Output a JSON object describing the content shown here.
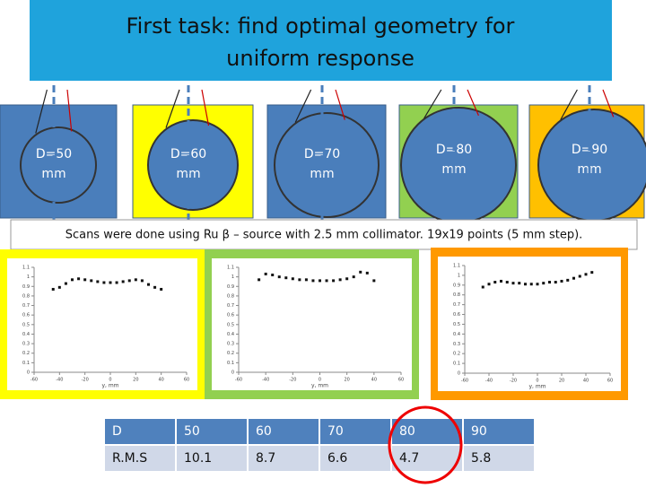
{
  "title": "First task: find optimal geometry for uniform response",
  "panels": [
    "D=50 mm",
    "D=60 mm",
    "D=70 mm",
    "D=80 mm",
    "D=90 mm"
  ],
  "caption": "Scans were done using Ru β – source with 2.5 mm collimator. 19x19 points (5 mm step).",
  "plots": [
    {
      "type": "scatter",
      "xlabel": "y, mm",
      "xlim": [
        -60,
        60
      ],
      "xticks": [
        -60,
        -40,
        -20,
        0,
        20,
        40,
        60
      ],
      "ylim": [
        0,
        1.1
      ],
      "yticks": [
        0,
        0.1,
        0.2,
        0.3,
        0.4,
        0.5,
        0.6,
        0.7,
        0.8,
        0.9,
        1,
        1.1
      ],
      "x": [
        -45,
        -40,
        -35,
        -30,
        -25,
        -20,
        -15,
        -10,
        -5,
        0,
        5,
        10,
        15,
        20,
        25,
        30,
        35,
        40,
        45
      ],
      "values": [
        0.87,
        0.89,
        0.93,
        0.97,
        0.98,
        0.97,
        0.96,
        0.95,
        0.94,
        0.94,
        0.94,
        0.95,
        0.96,
        0.97,
        0.96,
        0.92,
        0.89,
        0.87,
        null
      ]
    },
    {
      "type": "scatter",
      "xlabel": "y, mm",
      "xlim": [
        -60,
        60
      ],
      "xticks": [
        -60,
        -40,
        -20,
        0,
        20,
        40,
        60
      ],
      "ylim": [
        0,
        1.1
      ],
      "yticks": [
        0,
        0.1,
        0.2,
        0.3,
        0.4,
        0.5,
        0.6,
        0.7,
        0.8,
        0.9,
        1,
        1.1
      ],
      "x": [
        -45,
        -40,
        -35,
        -30,
        -25,
        -20,
        -15,
        -10,
        -5,
        0,
        5,
        10,
        15,
        20,
        25,
        30,
        35,
        40,
        45
      ],
      "values": [
        0.97,
        1.03,
        1.02,
        1.0,
        0.99,
        0.98,
        0.97,
        0.97,
        0.96,
        0.96,
        0.96,
        0.96,
        0.97,
        0.98,
        1.0,
        1.05,
        1.04,
        0.96,
        null
      ]
    },
    {
      "type": "scatter",
      "xlabel": "y, mm",
      "xlim": [
        -60,
        60
      ],
      "xticks": [
        -60,
        -40,
        -20,
        0,
        20,
        40,
        60
      ],
      "ylim": [
        0,
        1.1
      ],
      "yticks": [
        0,
        0.1,
        0.2,
        0.3,
        0.4,
        0.5,
        0.6,
        0.7,
        0.8,
        0.9,
        1,
        1.1
      ],
      "x": [
        -45,
        -40,
        -35,
        -30,
        -25,
        -20,
        -15,
        -10,
        -5,
        0,
        5,
        10,
        15,
        20,
        25,
        30,
        35,
        40,
        45
      ],
      "values": [
        0.88,
        0.91,
        0.93,
        0.94,
        0.93,
        0.92,
        0.92,
        0.91,
        0.91,
        0.91,
        0.92,
        0.93,
        0.93,
        0.94,
        0.95,
        0.97,
        0.99,
        1.01,
        1.03
      ]
    }
  ],
  "table": {
    "rows": [
      [
        "D",
        "50",
        "60",
        "70",
        "80",
        "90"
      ],
      [
        "R.M.S",
        "10.1",
        "8.7",
        "6.6",
        "4.7",
        "5.8"
      ]
    ]
  }
}
